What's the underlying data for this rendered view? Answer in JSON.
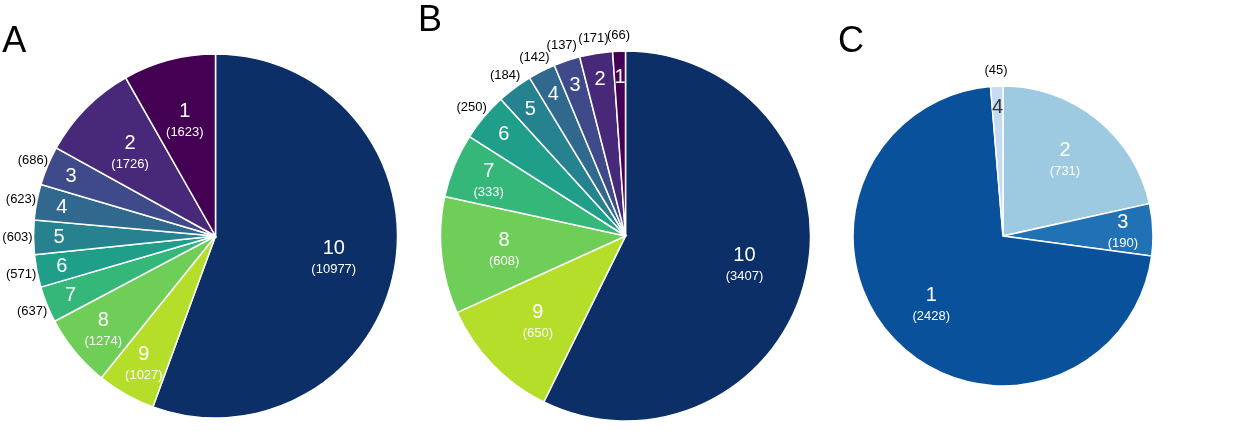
{
  "chart_data": [
    {
      "type": "pie",
      "title": "A",
      "categories": [
        "10",
        "9",
        "8",
        "7",
        "6",
        "5",
        "4",
        "3",
        "2",
        "1"
      ],
      "values": [
        10977,
        1027,
        1274,
        637,
        571,
        603,
        623,
        686,
        1726,
        1623
      ],
      "value_labels": [
        "(10977)",
        "(1027)",
        "(1274)",
        "(637)",
        "(571)",
        "(603)",
        "(623)",
        "(686)",
        "(1726)",
        "(1623)"
      ],
      "colors": [
        "#0b2f66",
        "#b5de2b",
        "#6ece58",
        "#35b779",
        "#1f9e89",
        "#26828e",
        "#31688e",
        "#3e4a89",
        "#482878",
        "#440154"
      ]
    },
    {
      "type": "pie",
      "title": "B",
      "categories": [
        "10",
        "9",
        "8",
        "7",
        "6",
        "5",
        "4",
        "3",
        "2",
        "1"
      ],
      "values": [
        3407,
        650,
        608,
        333,
        250,
        184,
        142,
        137,
        171,
        66
      ],
      "value_labels": [
        "(3407)",
        "(650)",
        "(608)",
        "(333)",
        "(250)",
        "(184)",
        "(142)",
        "(137)",
        "(171)",
        "(66)"
      ],
      "colors": [
        "#0b2f66",
        "#b5de2b",
        "#6ece58",
        "#35b779",
        "#1f9e89",
        "#26828e",
        "#31688e",
        "#3e4a89",
        "#482878",
        "#440154"
      ]
    },
    {
      "type": "pie",
      "title": "C",
      "categories": [
        "2",
        "3",
        "1",
        "4"
      ],
      "values": [
        731,
        190,
        2428,
        45
      ],
      "value_labels": [
        "(731)",
        "(190)",
        "(2428)",
        "(45)"
      ],
      "colors": [
        "#9ecae1",
        "#2171b5",
        "#0a519c",
        "#c6dbef"
      ]
    }
  ]
}
